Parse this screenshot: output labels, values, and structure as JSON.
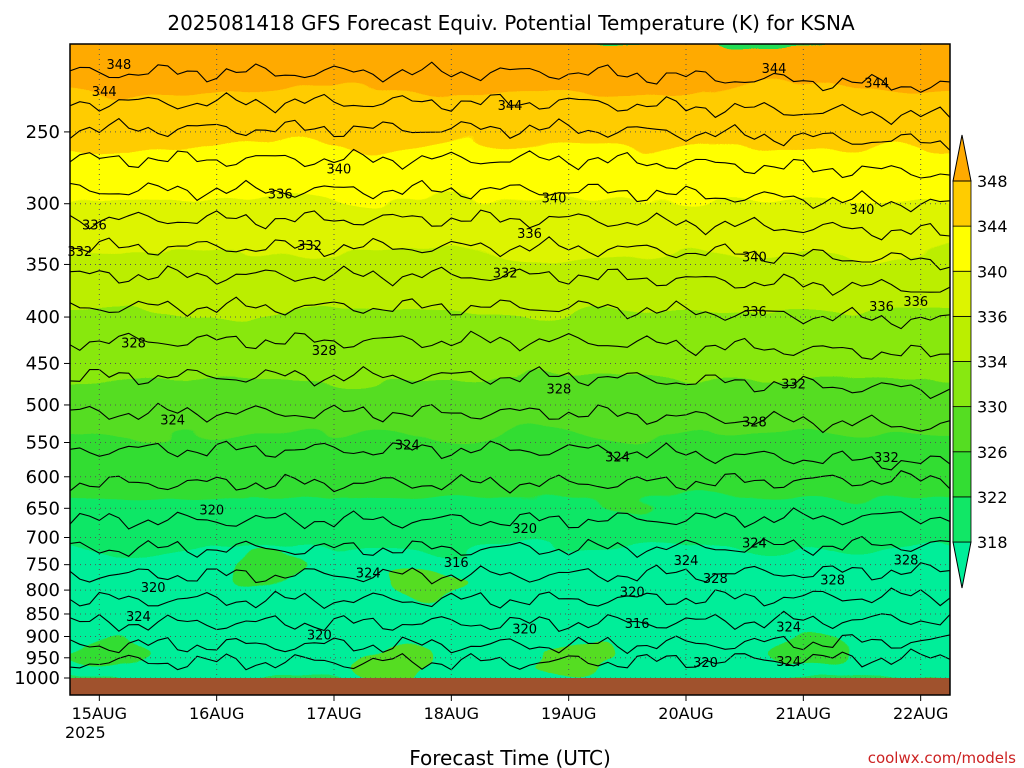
{
  "chart_data": {
    "type": "heatmap",
    "subtype": "filled-contour time-height cross-section",
    "title": "2025081418 GFS Forecast Equiv. Potential Temperature (K) for KSNA",
    "xlabel": "Forecast Time (UTC)",
    "ylabel": "",
    "credit": "coolwx.com/models",
    "x_ticks": [
      {
        "label": "15AUG",
        "sub": "2025",
        "hours": 0
      },
      {
        "label": "16AUG",
        "sub": "",
        "hours": 24
      },
      {
        "label": "17AUG",
        "sub": "",
        "hours": 48
      },
      {
        "label": "18AUG",
        "sub": "",
        "hours": 72
      },
      {
        "label": "19AUG",
        "sub": "",
        "hours": 96
      },
      {
        "label": "20AUG",
        "sub": "",
        "hours": 120
      },
      {
        "label": "21AUG",
        "sub": "",
        "hours": 144
      },
      {
        "label": "22AUG",
        "sub": "",
        "hours": 168
      }
    ],
    "x_range_hours": [
      -6,
      174
    ],
    "y_ticks": [
      "250",
      "300",
      "350",
      "400",
      "450",
      "500",
      "550",
      "600",
      "650",
      "700",
      "750",
      "800",
      "850",
      "900",
      "950",
      "1000"
    ],
    "y_range_hPa": [
      200,
      1000
    ],
    "y_scale": "log-pressure (inverted)",
    "grid": true,
    "colorbar": {
      "labels": [
        "318",
        "322",
        "326",
        "330",
        "334",
        "336",
        "340",
        "344",
        "348"
      ],
      "position": "right",
      "extend": "both",
      "colors": [
        "#00ee99",
        "#11e766",
        "#33dd33",
        "#55dd22",
        "#88e811",
        "#bbee00",
        "#ddf400",
        "#ffff00",
        "#ffcc00",
        "#ffaa00"
      ]
    },
    "ground_color": "#a0522d",
    "contour_labels": [
      {
        "text": "348",
        "hours": 4,
        "p": 211
      },
      {
        "text": "344",
        "hours": 1,
        "p": 226
      },
      {
        "text": "344",
        "hours": 84,
        "p": 234
      },
      {
        "text": "344",
        "hours": 138,
        "p": 213
      },
      {
        "text": "344",
        "hours": 159,
        "p": 221
      },
      {
        "text": "340",
        "hours": 49,
        "p": 275
      },
      {
        "text": "340",
        "hours": 93,
        "p": 296
      },
      {
        "text": "340",
        "hours": 156,
        "p": 305
      },
      {
        "text": "340",
        "hours": 134,
        "p": 344
      },
      {
        "text": "336",
        "hours": 37,
        "p": 293
      },
      {
        "text": "336",
        "hours": -1,
        "p": 317
      },
      {
        "text": "336",
        "hours": 88,
        "p": 324
      },
      {
        "text": "336",
        "hours": 134,
        "p": 395
      },
      {
        "text": "336",
        "hours": 160,
        "p": 390
      },
      {
        "text": "336",
        "hours": 167,
        "p": 385
      },
      {
        "text": "332",
        "hours": -4,
        "p": 339
      },
      {
        "text": "332",
        "hours": 43,
        "p": 334
      },
      {
        "text": "332",
        "hours": 83,
        "p": 358
      },
      {
        "text": "332",
        "hours": 142,
        "p": 475
      },
      {
        "text": "332",
        "hours": 161,
        "p": 572
      },
      {
        "text": "328",
        "hours": 7,
        "p": 428
      },
      {
        "text": "328",
        "hours": 46,
        "p": 436
      },
      {
        "text": "328",
        "hours": 94,
        "p": 481
      },
      {
        "text": "328",
        "hours": 134,
        "p": 523
      },
      {
        "text": "328",
        "hours": 126,
        "p": 778
      },
      {
        "text": "328",
        "hours": 150,
        "p": 781
      },
      {
        "text": "328",
        "hours": 165,
        "p": 742
      },
      {
        "text": "324",
        "hours": 15,
        "p": 520
      },
      {
        "text": "324",
        "hours": 63,
        "p": 554
      },
      {
        "text": "324",
        "hours": 106,
        "p": 571
      },
      {
        "text": "324",
        "hours": 134,
        "p": 711
      },
      {
        "text": "324",
        "hours": 120,
        "p": 743
      },
      {
        "text": "324",
        "hours": 55,
        "p": 767
      },
      {
        "text": "324",
        "hours": 8,
        "p": 857
      },
      {
        "text": "324",
        "hours": 141,
        "p": 880
      },
      {
        "text": "324",
        "hours": 141,
        "p": 960
      },
      {
        "text": "320",
        "hours": 23,
        "p": 654
      },
      {
        "text": "320",
        "hours": 87,
        "p": 685
      },
      {
        "text": "320",
        "hours": 11,
        "p": 796
      },
      {
        "text": "320",
        "hours": 109,
        "p": 805
      },
      {
        "text": "320",
        "hours": 87,
        "p": 884
      },
      {
        "text": "320",
        "hours": 45,
        "p": 898
      },
      {
        "text": "320",
        "hours": 124,
        "p": 963
      },
      {
        "text": "316",
        "hours": 73,
        "p": 747
      },
      {
        "text": "316",
        "hours": 110,
        "p": 872
      }
    ],
    "field_description": [
      {
        "p_range": [
          200,
          260
        ],
        "values_K": [
          340,
          350
        ]
      },
      {
        "p_range": [
          260,
          400
        ],
        "values_K": [
          332,
          340
        ]
      },
      {
        "p_range": [
          400,
          600
        ],
        "values_K": [
          324,
          332
        ]
      },
      {
        "p_range": [
          600,
          900
        ],
        "values_K": [
          316,
          324
        ]
      },
      {
        "p_range": [
          900,
          1000
        ],
        "values_K": [
          318,
          330
        ]
      }
    ]
  }
}
